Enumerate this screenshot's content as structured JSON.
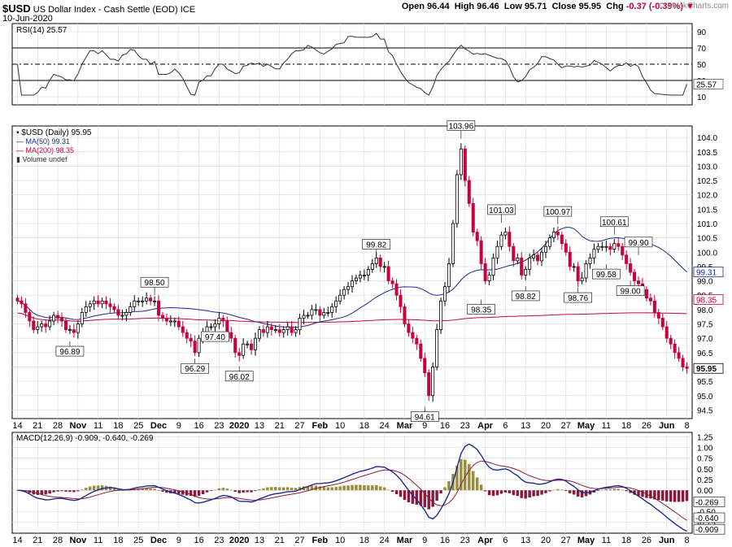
{
  "header": {
    "symbol": "$USD",
    "name": "US Dollar Index - Cash Settle (EOD)",
    "exchange": "ICE",
    "date": "10-Jun-2020",
    "open_label": "Open",
    "open": "96.44",
    "high_label": "High",
    "high": "96.46",
    "low_label": "Low",
    "low": "95.71",
    "close_label": "Close",
    "close": "95.95",
    "chg_label": "Chg",
    "chg": "-0.37 (-0.39%)",
    "watermark": "© StockCharts.com"
  },
  "colors": {
    "up_candle": "#000000",
    "down_candle": "#c8003c",
    "ma50": "#1b2a8c",
    "ma200": "#c8003c",
    "macd_line": "#1b2a8c",
    "signal_line": "#8b1a3a",
    "hist_pos": "#9a8c3a",
    "hist_neg": "#8b1a3a",
    "grid": "#d8d8d8",
    "axis": "#000000"
  },
  "x_axis": {
    "ticks": [
      "14",
      "21",
      "28",
      "Nov",
      "11",
      "18",
      "25",
      "Dec",
      "9",
      "16",
      "23",
      "2020",
      "13",
      "21",
      "27",
      "Feb",
      "10",
      "18",
      "24",
      "Mar",
      "9",
      "16",
      "23",
      "Apr",
      "6",
      "13",
      "20",
      "27",
      "May",
      "11",
      "18",
      "26",
      "Jun",
      "8"
    ],
    "bold": [
      "Nov",
      "Dec",
      "2020",
      "Feb",
      "Mar",
      "Apr",
      "May",
      "Jun"
    ]
  },
  "rsi_panel": {
    "legend": "RSI(14) 25.57",
    "ticks": [
      "90",
      "70",
      "50",
      "30",
      "10"
    ],
    "last_value": "25.57"
  },
  "price_panel": {
    "legend_main": "$USD (Daily) 95.95",
    "legend_ma50": "MA(50) 99.31",
    "legend_ma200": "MA(200) 98.35",
    "legend_volume": "Volume undef",
    "ticks": [
      "104.0",
      "103.5",
      "103.0",
      "102.5",
      "102.0",
      "101.5",
      "101.0",
      "100.5",
      "100.0",
      "99.5",
      "99.0",
      "98.5",
      "98.0",
      "97.5",
      "97.0",
      "96.5",
      "96.0",
      "95.5",
      "95.0",
      "94.5"
    ],
    "badge_ma50": "99.31",
    "badge_ma200": "98.35",
    "badge_close": "95.95",
    "annotations": [
      "96.89",
      "98.50",
      "97.40",
      "96.29",
      "96.02",
      "99.82",
      "94.61",
      "103.96",
      "98.35",
      "101.03",
      "98.82",
      "100.97",
      "98.76",
      "100.61",
      "99.58",
      "99.90",
      "99.00"
    ]
  },
  "macd_panel": {
    "legend": "MACD(12,26,9) -0.909, -0.640, -0.269",
    "ticks": [
      "1.25",
      "1.00",
      "0.75",
      "0.50",
      "0.25",
      "0.00",
      "-0.50",
      "-0.75"
    ],
    "badges": [
      "-0.269",
      "-0.640",
      "-0.909"
    ]
  },
  "chart_data": {
    "type": "candlestick",
    "title": "$USD US Dollar Index - Cash Settle (EOD) ICE",
    "x": [
      "Oct 14",
      "Oct 15",
      "Oct 16",
      "Oct 17",
      "Oct 18",
      "Oct 21",
      "Oct 22",
      "Oct 23",
      "Oct 24",
      "Oct 25",
      "Oct 28",
      "Oct 29",
      "Oct 30",
      "Oct 31",
      "Nov 1",
      "Nov 4",
      "Nov 5",
      "Nov 6",
      "Nov 7",
      "Nov 8",
      "Nov 11",
      "Nov 12",
      "Nov 13",
      "Nov 14",
      "Nov 15",
      "Nov 18",
      "Nov 19",
      "Nov 20",
      "Nov 21",
      "Nov 22",
      "Nov 25",
      "Nov 26",
      "Nov 27",
      "Nov 28",
      "Nov 29",
      "Dec 2",
      "Dec 3",
      "Dec 4",
      "Dec 5",
      "Dec 6",
      "Dec 9",
      "Dec 10",
      "Dec 11",
      "Dec 12",
      "Dec 13",
      "Dec 16",
      "Dec 17",
      "Dec 18",
      "Dec 19",
      "Dec 20",
      "Dec 23",
      "Dec 24",
      "Dec 26",
      "Dec 27",
      "Dec 30",
      "Dec 31",
      "Jan 2",
      "Jan 3",
      "Jan 6",
      "Jan 7",
      "Jan 8",
      "Jan 9",
      "Jan 10",
      "Jan 13",
      "Jan 14",
      "Jan 15",
      "Jan 16",
      "Jan 17",
      "Jan 21",
      "Jan 22",
      "Jan 23",
      "Jan 24",
      "Jan 27",
      "Jan 28",
      "Jan 29",
      "Jan 30",
      "Jan 31",
      "Feb 3",
      "Feb 4",
      "Feb 5",
      "Feb 6",
      "Feb 7",
      "Feb 10",
      "Feb 11",
      "Feb 12",
      "Feb 13",
      "Feb 14",
      "Feb 18",
      "Feb 19",
      "Feb 20",
      "Feb 21",
      "Feb 24",
      "Feb 25",
      "Feb 26",
      "Feb 27",
      "Feb 28",
      "Mar 2",
      "Mar 3",
      "Mar 4",
      "Mar 5",
      "Mar 6",
      "Mar 9",
      "Mar 10",
      "Mar 11",
      "Mar 12",
      "Mar 13",
      "Mar 16",
      "Mar 17",
      "Mar 18",
      "Mar 19",
      "Mar 20",
      "Mar 23",
      "Mar 24",
      "Mar 25",
      "Mar 26",
      "Mar 27",
      "Mar 30",
      "Mar 31",
      "Apr 1",
      "Apr 2",
      "Apr 3",
      "Apr 6",
      "Apr 7",
      "Apr 8",
      "Apr 9",
      "Apr 13",
      "Apr 14",
      "Apr 15",
      "Apr 16",
      "Apr 17",
      "Apr 20",
      "Apr 21",
      "Apr 22",
      "Apr 23",
      "Apr 24",
      "Apr 27",
      "Apr 28",
      "Apr 29",
      "Apr 30",
      "May 1",
      "May 4",
      "May 5",
      "May 6",
      "May 7",
      "May 8",
      "May 11",
      "May 12",
      "May 13",
      "May 14",
      "May 15",
      "May 18",
      "May 19",
      "May 20",
      "May 21",
      "May 22",
      "May 26",
      "May 27",
      "May 28",
      "May 29",
      "Jun 1",
      "Jun 2",
      "Jun 3",
      "Jun 4",
      "Jun 5",
      "Jun 8",
      "Jun 9",
      "Jun 10"
    ],
    "close": [
      98.3,
      98.2,
      97.9,
      97.6,
      97.3,
      97.4,
      97.5,
      97.4,
      97.6,
      97.8,
      97.7,
      97.6,
      97.3,
      97.3,
      97.2,
      97.5,
      97.9,
      98.1,
      98.2,
      98.3,
      98.2,
      98.3,
      98.2,
      98.1,
      98.0,
      97.8,
      97.8,
      97.9,
      98.1,
      98.3,
      98.3,
      98.3,
      98.4,
      98.3,
      98.3,
      97.8,
      97.7,
      97.6,
      97.6,
      97.6,
      97.4,
      97.2,
      97.0,
      96.9,
      96.5,
      97.0,
      97.2,
      97.4,
      97.4,
      97.5,
      97.7,
      97.6,
      97.2,
      97.0,
      96.5,
      96.4,
      96.8,
      96.8,
      96.6,
      97.0,
      97.3,
      97.2,
      97.4,
      97.3,
      97.3,
      97.2,
      97.3,
      97.4,
      97.2,
      97.3,
      97.7,
      97.8,
      97.8,
      98.0,
      98.0,
      97.8,
      97.9,
      97.9,
      98.1,
      98.3,
      98.5,
      98.7,
      98.8,
      99.0,
      99.1,
      99.2,
      99.2,
      99.4,
      99.6,
      99.8,
      99.5,
      99.5,
      99.0,
      98.9,
      98.5,
      98.1,
      97.5,
      97.2,
      97.0,
      96.8,
      96.3,
      95.8,
      95.0,
      96.0,
      97.3,
      98.3,
      98.8,
      99.6,
      101.0,
      102.7,
      103.6,
      102.5,
      101.7,
      100.7,
      100.4,
      99.6,
      99.0,
      99.2,
      99.8,
      100.2,
      100.6,
      100.7,
      100.2,
      99.7,
      99.8,
      99.2,
      99.4,
      99.8,
      99.9,
      99.7,
      100.0,
      100.2,
      100.5,
      100.7,
      100.6,
      100.3,
      100.0,
      99.5,
      99.5,
      99.0,
      99.1,
      99.6,
      99.8,
      100.1,
      100.2,
      100.2,
      100.2,
      100.1,
      100.3,
      100.2,
      99.9,
      99.6,
      99.3,
      99.0,
      98.9,
      98.7,
      98.4,
      98.3,
      97.9,
      97.7,
      97.4,
      97.0,
      96.8,
      96.5,
      96.3,
      96.0,
      95.95
    ],
    "annotated_highs_lows": [
      {
        "date": "Oct 31",
        "value": 96.89
      },
      {
        "date": "Nov 29",
        "value": 98.5
      },
      {
        "date": "Dec 20",
        "value": 97.4
      },
      {
        "date": "Dec 13",
        "value": 96.29
      },
      {
        "date": "Dec 31",
        "value": 96.02
      },
      {
        "date": "Feb 20",
        "value": 99.82
      },
      {
        "date": "Mar 9",
        "value": 94.61
      },
      {
        "date": "Mar 20",
        "value": 103.96
      },
      {
        "date": "Mar 27",
        "value": 98.35
      },
      {
        "date": "Apr 3",
        "value": 101.03
      },
      {
        "date": "Apr 14",
        "value": 98.82
      },
      {
        "date": "Apr 24",
        "value": 100.97
      },
      {
        "date": "May 1",
        "value": 98.76
      },
      {
        "date": "May 14",
        "value": 100.61
      },
      {
        "date": "May 12",
        "value": 99.58
      },
      {
        "date": "May 22",
        "value": 99.9
      },
      {
        "date": "May 20",
        "value": 99.0
      }
    ],
    "ma50_last": 99.31,
    "ma200_last": 98.35,
    "rsi_last": 25.57,
    "macd_last": -0.909,
    "signal_last": -0.64,
    "histogram_last": -0.269,
    "ylim": [
      94.2,
      104.4
    ],
    "rsi_ylim": [
      0,
      100
    ],
    "macd_ylim": [
      -1.0,
      1.35
    ]
  }
}
